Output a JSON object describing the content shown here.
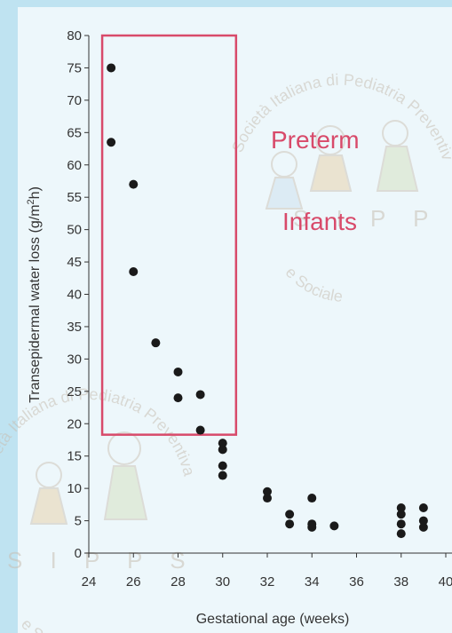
{
  "chart_data": {
    "type": "scatter",
    "title": "",
    "xlabel": "Gestational age (weeks)",
    "ylabel_main": "Transepidermal water loss (g/m",
    "ylabel_sup": "2",
    "ylabel_end": "h)",
    "xlim": [
      24,
      40
    ],
    "ylim": [
      0,
      80
    ],
    "xticks": [
      "24",
      "26",
      "28",
      "30",
      "32",
      "34",
      "36",
      "38",
      "40"
    ],
    "yticks": [
      "0",
      "5",
      "10",
      "15",
      "20",
      "25",
      "30",
      "35",
      "40",
      "45",
      "50",
      "55",
      "60",
      "65",
      "70",
      "75",
      "80"
    ],
    "grid": false,
    "points": [
      {
        "x": 25,
        "y": 75
      },
      {
        "x": 25,
        "y": 63.5
      },
      {
        "x": 26,
        "y": 57
      },
      {
        "x": 26,
        "y": 43.5
      },
      {
        "x": 27,
        "y": 32.5
      },
      {
        "x": 28,
        "y": 28
      },
      {
        "x": 28,
        "y": 24
      },
      {
        "x": 29,
        "y": 24.5
      },
      {
        "x": 29,
        "y": 19
      },
      {
        "x": 30,
        "y": 17
      },
      {
        "x": 30,
        "y": 16
      },
      {
        "x": 30,
        "y": 13.5
      },
      {
        "x": 30,
        "y": 12
      },
      {
        "x": 32,
        "y": 9.5
      },
      {
        "x": 32,
        "y": 8.5
      },
      {
        "x": 33,
        "y": 6
      },
      {
        "x": 33,
        "y": 4.5
      },
      {
        "x": 34,
        "y": 8.5
      },
      {
        "x": 34,
        "y": 4.5
      },
      {
        "x": 34,
        "y": 4
      },
      {
        "x": 35,
        "y": 4.2
      },
      {
        "x": 38,
        "y": 7
      },
      {
        "x": 38,
        "y": 6
      },
      {
        "x": 38,
        "y": 4.5
      },
      {
        "x": 38,
        "y": 3
      },
      {
        "x": 39,
        "y": 7
      },
      {
        "x": 39,
        "y": 5
      },
      {
        "x": 39,
        "y": 4
      }
    ],
    "point_color": "#1a1a1a",
    "highlight_region": {
      "x_range": [
        24.6,
        30.6
      ],
      "y_range": [
        18.3,
        80
      ],
      "color": "#d84a6a",
      "label_line1": "Preterm",
      "label_line2": "Infants"
    }
  },
  "watermark": {
    "top_arc": "Società Italiana di Pediatria Preventiva",
    "bottom_arc": "e Sociale",
    "initials": "S I P P S",
    "color": "#c8bfb4"
  },
  "colors": {
    "axis": "#333333",
    "text": "#333333",
    "background_band": "#bfe3f1",
    "panel": "#edf7fb"
  }
}
